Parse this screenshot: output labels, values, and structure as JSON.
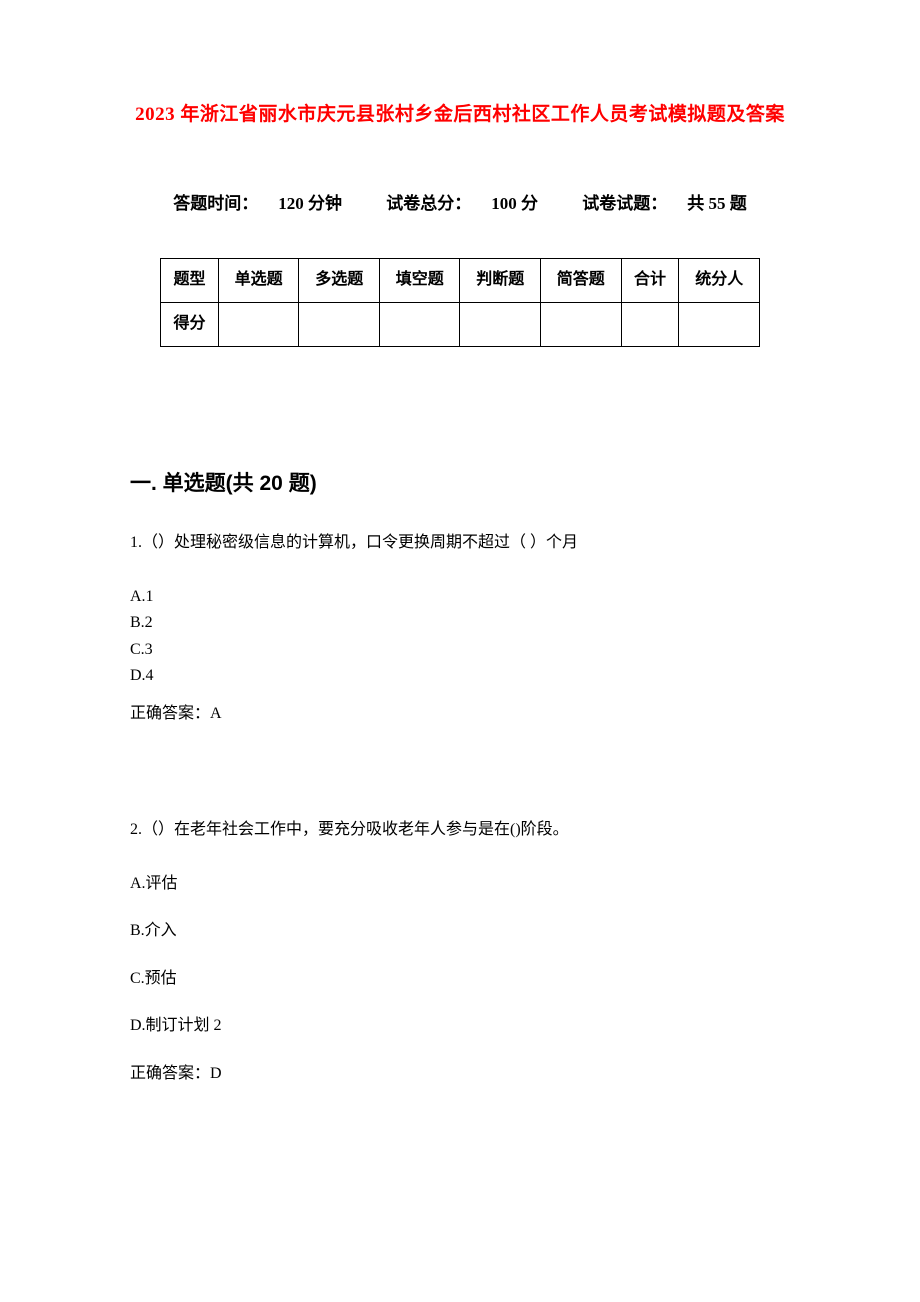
{
  "title": "2023 年浙江省丽水市庆元县张村乡金后西村社区工作人员考试模拟题及答案",
  "exam_info": {
    "time_label": "答题时间：",
    "time_value": "120 分钟",
    "total_label": "试卷总分：",
    "total_value": "100 分",
    "count_label": "试卷试题：",
    "count_value": "共 55 题"
  },
  "table": {
    "headers": [
      "题型",
      "单选题",
      "多选题",
      "填空题",
      "判断题",
      "简答题",
      "合计",
      "统分人"
    ],
    "row_label": "得分"
  },
  "section1_title": "一. 单选题(共 20 题)",
  "q1": {
    "stem": "1.（）处理秘密级信息的计算机，口令更换周期不超过（  ）个月",
    "opts": [
      "A.1",
      "B.2",
      "C.3",
      "D.4"
    ],
    "answer": "正确答案：A"
  },
  "q2": {
    "stem": "2.（）在老年社会工作中，要充分吸收老年人参与是在()阶段。",
    "opts": [
      "A.评估",
      "B.介入",
      "C.预估",
      "D.制订计划 2"
    ],
    "answer": "正确答案：D"
  },
  "colors": {
    "title": "#ff0000",
    "text": "#000000",
    "border": "#000000",
    "bg": "#ffffff"
  }
}
